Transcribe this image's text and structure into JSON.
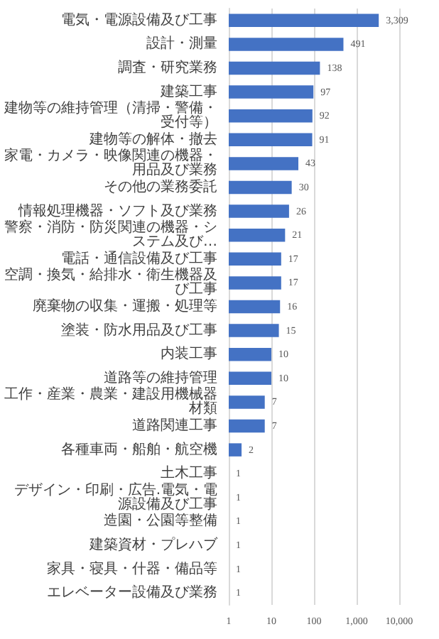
{
  "chart_data": {
    "type": "bar",
    "orientation": "horizontal",
    "log": "x",
    "color": "#4472c4",
    "grid": "x",
    "categories": [
      "電気・電源設備及び工事",
      "設計・測量",
      "調査・研究業務",
      "建築工事",
      "建物等の維持管理（清掃・警備・受付等）",
      "建物等の解体・撤去",
      "家電・カメラ・映像関連の機器・用品及び業務",
      "その他の業務委託",
      "情報処理機器・ソフト及び業務",
      "警察・消防・防災関連の機器・システム及び…",
      "電話・通信設備及び工事",
      "空調・換気・給排水・衛生機器及び工事",
      "廃棄物の収集・運搬・処理等",
      "塗装・防水用品及び工事",
      "内装工事",
      "道路等の維持管理",
      "工作・産業・農業・建設用機械器材類",
      "道路関連工事",
      "各種車両・船舶・航空機",
      "土木工事",
      "デザイン・印刷・広告.電気・電源設備及び工事",
      "造園・公園等整備",
      "建築資材・プレハブ",
      "家具・寝具・什器・備品等",
      "エレベーター設備及び業務"
    ],
    "values": [
      3309,
      491,
      138,
      97,
      92,
      91,
      43,
      30,
      26,
      21,
      17,
      17,
      16,
      15,
      10,
      10,
      7,
      7,
      2,
      1,
      1,
      1,
      1,
      1,
      1
    ],
    "value_labels": [
      "3,309",
      "491",
      "138",
      "97",
      "92",
      "91",
      "43",
      "30",
      "26",
      "21",
      "17",
      "17",
      "16",
      "15",
      "10",
      "10",
      "7",
      "7",
      "2",
      "1",
      "1",
      "1",
      "1",
      "1",
      "1"
    ],
    "xlim": [
      1,
      10000
    ],
    "xticks": [
      1,
      10,
      100,
      {
        "value": 1000,
        "label": "1,000"
      },
      {
        "value": 10000,
        "label": "10,000"
      }
    ]
  }
}
